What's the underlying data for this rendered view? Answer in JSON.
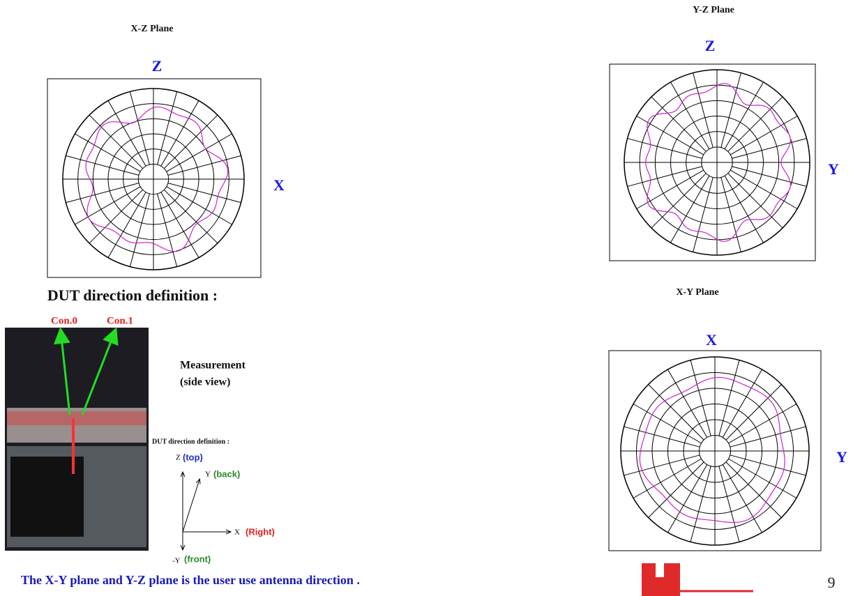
{
  "xz_plot": {
    "title": "X-Z Plane",
    "top_axis": "Z",
    "side_axis": "X"
  },
  "yz_plot": {
    "title": "Y-Z Plane",
    "top_axis": "Z",
    "side_axis": "Y"
  },
  "xy_plot": {
    "title": "X-Y Plane",
    "top_axis": "X",
    "side_axis": "Y"
  },
  "dut": {
    "heading": "DUT direction definition :",
    "photo_labels": [
      "Con.0",
      "Con.1"
    ],
    "measurement": [
      "Measurement",
      "(side view)"
    ],
    "small_heading": "DUT direction definition :",
    "axes": {
      "z": {
        "name": "Z",
        "dir": "(top)"
      },
      "y": {
        "name": "Y",
        "dir": "(back)"
      },
      "x": {
        "name": "X",
        "dir": "(Right)"
      },
      "neg_y": {
        "name": "-Y",
        "dir": "(front)"
      }
    }
  },
  "footer_note": "The X-Y plane and Y-Z plane is the user use antenna direction .",
  "page_number": "9"
}
